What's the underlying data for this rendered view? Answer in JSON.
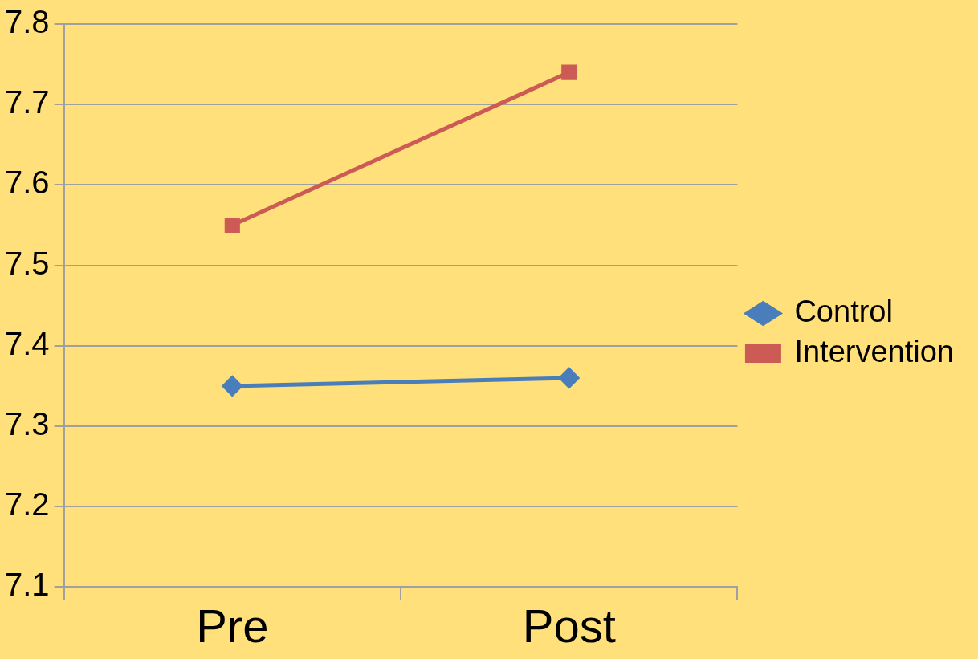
{
  "chart_data": {
    "type": "line",
    "categories": [
      "Pre",
      "Post"
    ],
    "series": [
      {
        "name": "Control",
        "color": "#4a7ebb",
        "marker": "diamond",
        "values": [
          7.35,
          7.36
        ]
      },
      {
        "name": "Intervention",
        "color": "#cc5b55",
        "marker": "square",
        "values": [
          7.55,
          7.74
        ]
      }
    ],
    "ylim": [
      7.1,
      7.8
    ],
    "yticks": [
      7.1,
      7.2,
      7.3,
      7.4,
      7.5,
      7.6,
      7.7,
      7.8
    ],
    "grid": "y",
    "legend": "right",
    "line_style": "solid"
  }
}
